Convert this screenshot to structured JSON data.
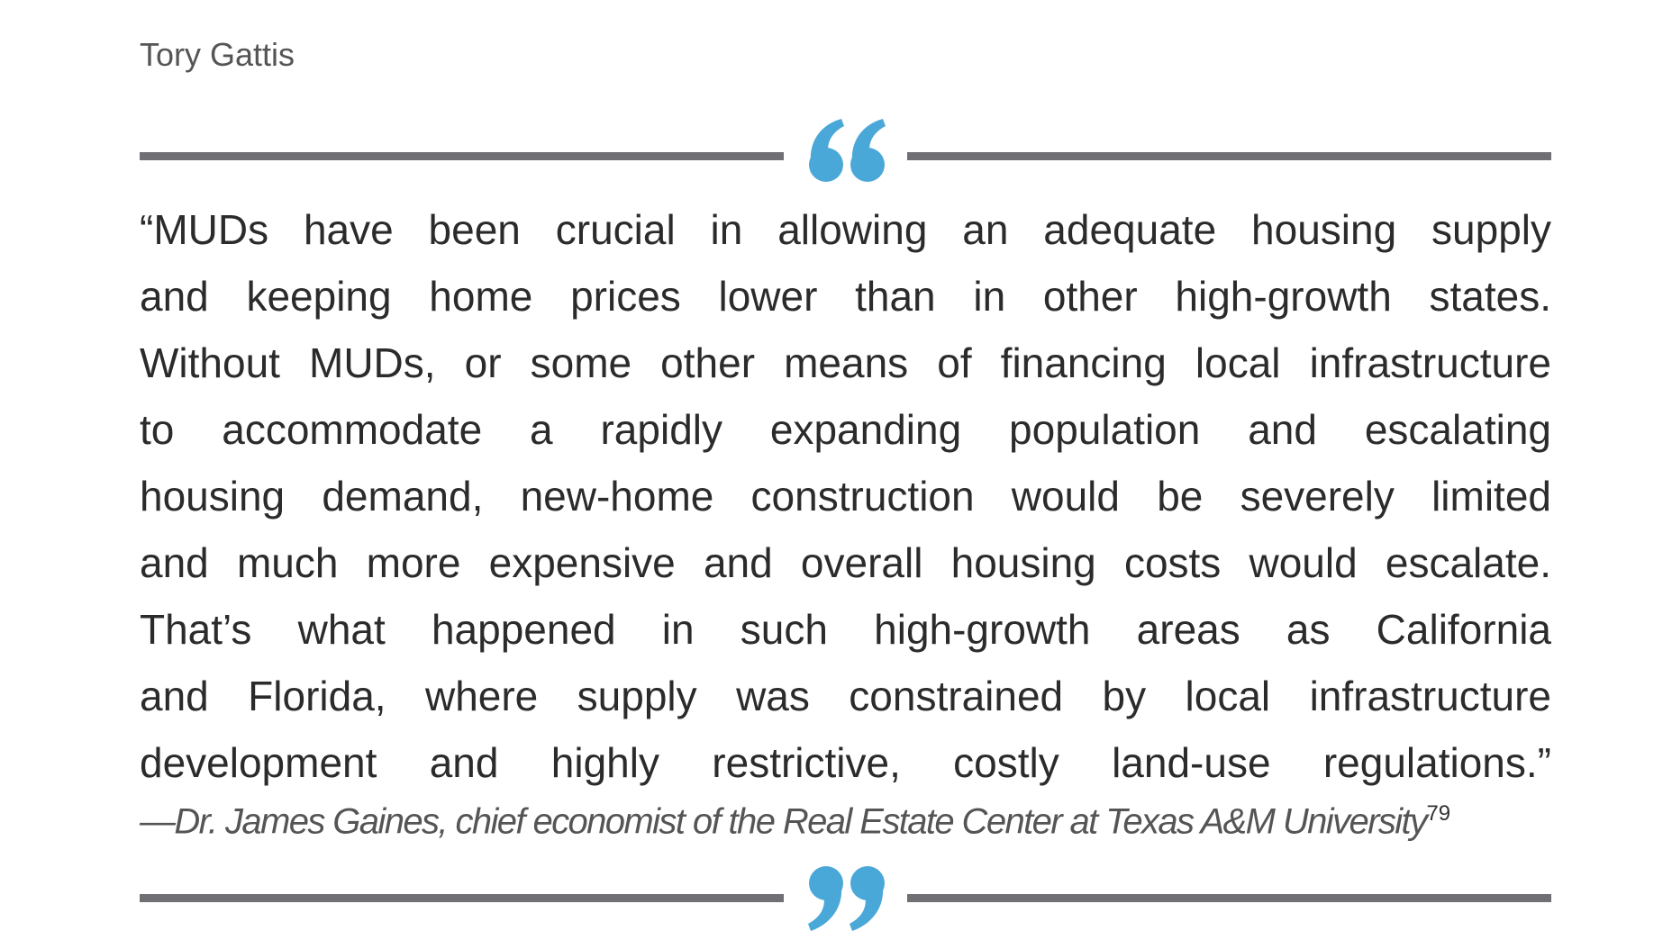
{
  "header": {
    "author": "Tory Gattis"
  },
  "quote": {
    "lines": [
      "“MUDs have been crucial in allowing an adequate housing supply",
      "and keeping home prices lower than in other high-growth states.",
      "Without MUDs, or some other means of financing local infrastructure",
      "to accommodate a rapidly expanding population and escalating",
      "housing demand, new-home construction would be severely limited",
      "and much more expensive and overall housing costs would escalate.",
      "That’s what happened in such high-growth areas as California",
      "and Florida, where supply was constrained by local infrastructure",
      "development and highly restrictive, costly land-use regulations.”"
    ],
    "attribution": "—Dr. James Gaines, chief economist of the Real Estate Center at Texas A&M  University",
    "footnote": "79"
  }
}
